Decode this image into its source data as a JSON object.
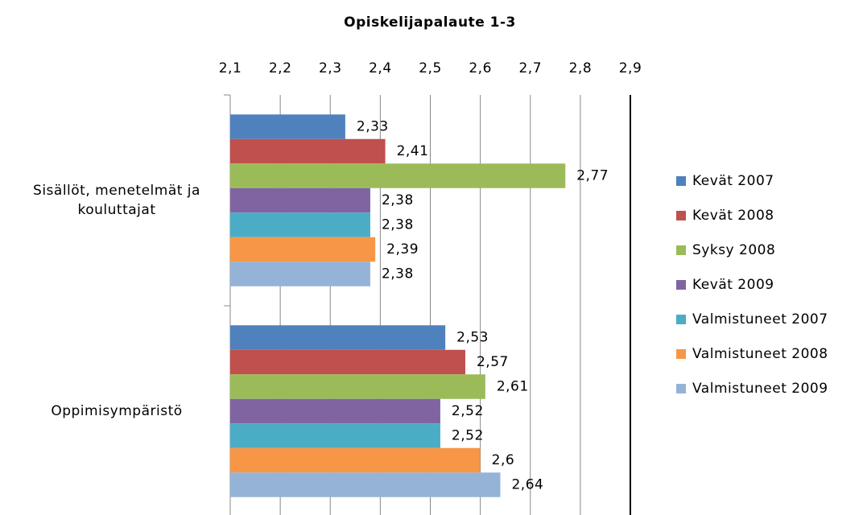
{
  "chart_data": {
    "type": "hbar",
    "title": "Opiskelijapalaute 1-3",
    "categories": [
      "Sisällöt, menetelmät ja kouluttajat",
      "Oppimisympäristö"
    ],
    "series": [
      {
        "name": "Kevät 2007",
        "color": "#4F81BD",
        "values": [
          2.33,
          2.53
        ],
        "value_labels": [
          "2,33",
          "2,53"
        ]
      },
      {
        "name": "Kevät 2008",
        "color": "#C0504D",
        "values": [
          2.41,
          2.57
        ],
        "value_labels": [
          "2,41",
          "2,57"
        ]
      },
      {
        "name": "Syksy 2008",
        "color": "#9BBB59",
        "values": [
          2.77,
          2.61
        ],
        "value_labels": [
          "2,77",
          "2,61"
        ]
      },
      {
        "name": "Kevät 2009",
        "color": "#8064A2",
        "values": [
          2.38,
          2.52
        ],
        "value_labels": [
          "2,38",
          "2,52"
        ]
      },
      {
        "name": "Valmistuneet 2007",
        "color": "#4BACC6",
        "values": [
          2.38,
          2.52
        ],
        "value_labels": [
          "2,38",
          "2,52"
        ]
      },
      {
        "name": "Valmistuneet 2008",
        "color": "#F79646",
        "values": [
          2.39,
          2.6
        ],
        "value_labels": [
          "2,39",
          "2,6"
        ]
      },
      {
        "name": "Valmistuneet 2009",
        "color": "#95B3D7",
        "values": [
          2.38,
          2.64
        ],
        "value_labels": [
          "2,38",
          "2,64"
        ]
      }
    ],
    "xlim": [
      2.1,
      2.9
    ],
    "xticks": [
      {
        "value": 2.1,
        "label": "2,1"
      },
      {
        "value": 2.2,
        "label": "2,2"
      },
      {
        "value": 2.3,
        "label": "2,3"
      },
      {
        "value": 2.4,
        "label": "2,4"
      },
      {
        "value": 2.5,
        "label": "2,5"
      },
      {
        "value": 2.6,
        "label": "2,6"
      },
      {
        "value": 2.7,
        "label": "2,7"
      },
      {
        "value": 2.8,
        "label": "2,8"
      },
      {
        "value": 2.9,
        "label": "2,9"
      }
    ],
    "grid": true,
    "legend": "right"
  }
}
